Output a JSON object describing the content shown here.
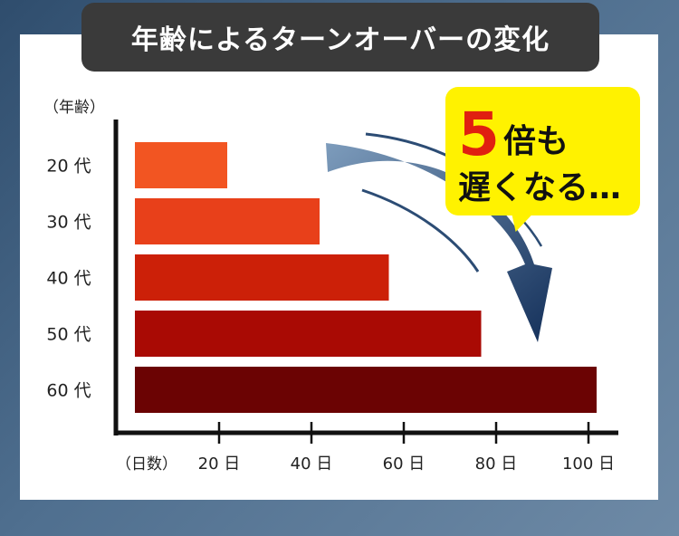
{
  "title": "年齢によるターンオーバーの変化",
  "callout": {
    "number": "5",
    "line1": "倍も",
    "line2": "遅くなる…"
  },
  "colors": {
    "bars": [
      "#f25522",
      "#e8401a",
      "#cc2008",
      "#a90a04",
      "#6b0303"
    ],
    "callout_bg": "#fff200",
    "callout_number": "#e02010",
    "arrow": "#1c3e65"
  },
  "chart_data": {
    "type": "bar",
    "orientation": "horizontal",
    "title": "年齢によるターンオーバーの変化",
    "ylabel": "（年齢）",
    "xlabel": "（日数）",
    "categories": [
      "20 代",
      "30 代",
      "40 代",
      "50 代",
      "60 代"
    ],
    "values": [
      20,
      40,
      55,
      75,
      100
    ],
    "xlim": [
      0,
      102
    ],
    "xticks": [
      20,
      40,
      60,
      80,
      100
    ],
    "xtick_labels": [
      "20 日",
      "40 日",
      "60 日",
      "80 日",
      "100 日"
    ],
    "grid": false,
    "legend": "none"
  }
}
